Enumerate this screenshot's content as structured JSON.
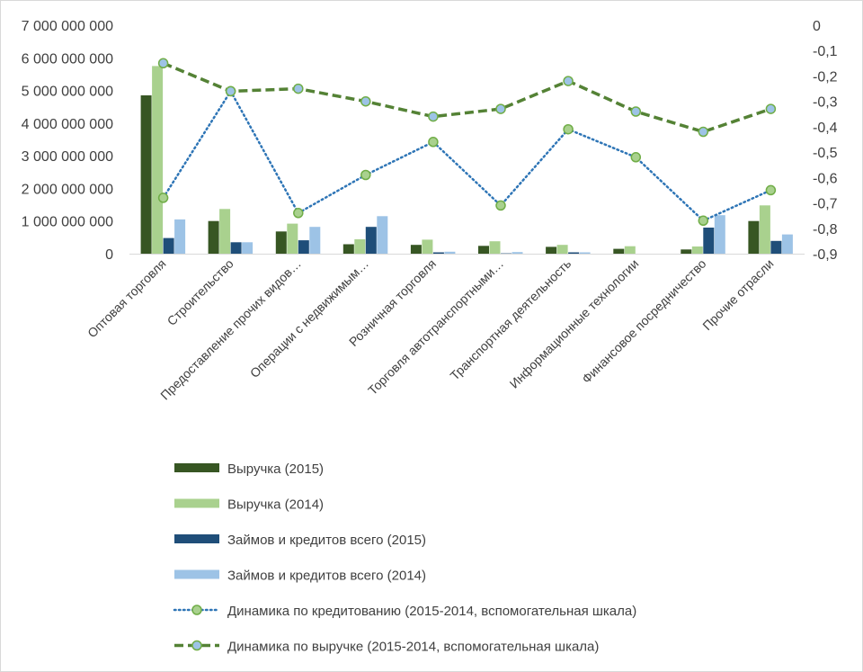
{
  "chart_data": {
    "type": "bar",
    "categories": [
      "Оптовая торговля",
      "Строительство",
      "Предоставление прочих видов…",
      "Операции с недвижимым…",
      "Розничная торговля",
      "Торговля автотранспортными…",
      "Транспортная  деятельность",
      "Информационные технологии",
      "Финансовое посредничество",
      "Прочие отрасли"
    ],
    "y_left": {
      "min": 0,
      "max": 7000000000,
      "step": 1000000000,
      "tick_labels": [
        "0",
        "1 000 000 000",
        "2 000 000 000",
        "3 000 000 000",
        "4 000 000 000",
        "5 000 000 000",
        "6 000 000 000",
        "7 000 000 000"
      ]
    },
    "y_right": {
      "min": -0.9,
      "max": 0,
      "step": 0.1,
      "tick_labels": [
        "0",
        "-0,1",
        "-0,2",
        "-0,3",
        "-0,4",
        "-0,5",
        "-0,6",
        "-0,7",
        "-0,8",
        "-0,9"
      ]
    },
    "series": [
      {
        "name": "Выручка (2015)",
        "kind": "bar",
        "color": "#375623",
        "values": [
          4850000000,
          1000000000,
          680000000,
          290000000,
          270000000,
          240000000,
          210000000,
          150000000,
          130000000,
          1000000000
        ]
      },
      {
        "name": "Выручка (2014)",
        "kind": "bar",
        "color": "#a9d18e",
        "values": [
          5750000000,
          1370000000,
          920000000,
          440000000,
          430000000,
          380000000,
          270000000,
          230000000,
          220000000,
          1480000000
        ]
      },
      {
        "name": "Займов и кредитов всего (2015)",
        "kind": "bar",
        "color": "#1f4e79",
        "values": [
          480000000,
          350000000,
          410000000,
          820000000,
          40000000,
          10000000,
          40000000,
          0,
          800000000,
          390000000
        ]
      },
      {
        "name": "Займов и кредитов всего (2014)",
        "kind": "bar",
        "color": "#9dc3e6",
        "values": [
          1050000000,
          350000000,
          820000000,
          1150000000,
          60000000,
          50000000,
          40000000,
          0,
          1180000000,
          590000000
        ]
      },
      {
        "name": "Динамика по кредитованию (2015-2014, вспомогательная шкала)",
        "kind": "line",
        "style": "dotted",
        "axis": "right",
        "color": "#2e75b6",
        "marker_fill": "#a9d18e",
        "marker_stroke": "#70ad47",
        "values": [
          -0.68,
          -0.26,
          -0.74,
          -0.59,
          -0.46,
          -0.71,
          -0.41,
          -0.52,
          -0.77,
          -0.65
        ]
      },
      {
        "name": "Динамика по выручке (2015-2014, вспомогательная шкала)",
        "kind": "line",
        "style": "dashed",
        "axis": "right",
        "color": "#548235",
        "marker_fill": "#9dc3e6",
        "marker_stroke": "#70ad47",
        "values": [
          -0.15,
          -0.26,
          -0.25,
          -0.3,
          -0.36,
          -0.33,
          -0.22,
          -0.34,
          -0.42,
          -0.33
        ]
      }
    ],
    "legend_position": "bottom",
    "grid": false
  }
}
